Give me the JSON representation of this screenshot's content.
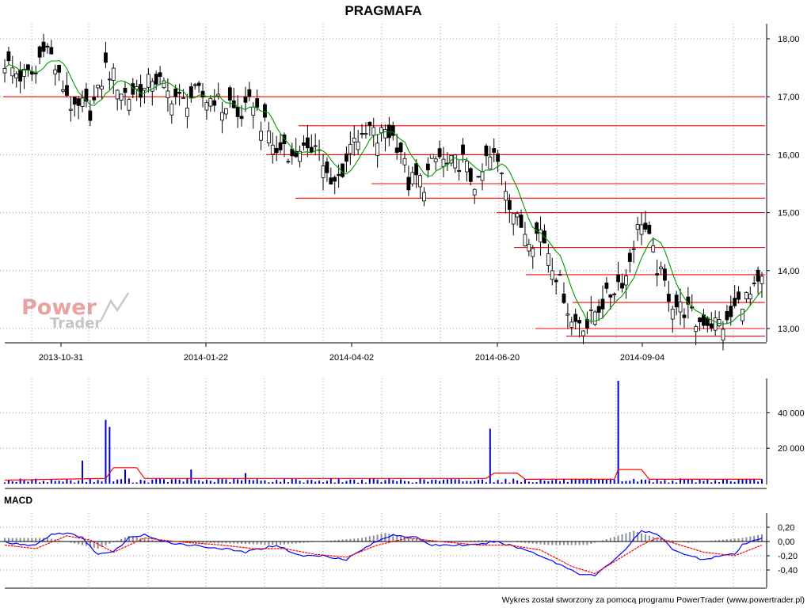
{
  "title": "PRAGMAFA",
  "footer": "Wykres został stworzony za pomocą programu PowerTrader (www.powertrader.pl)",
  "watermark": {
    "line1": "Power",
    "line2": "Trader"
  },
  "colors": {
    "candle_up": "#ffffff",
    "candle_down": "#000000",
    "ma": "#009900",
    "levels": "#ff0000",
    "volume": "#0000cc",
    "volume_avg": "#ff0000",
    "macd": "#0000ff",
    "signal": "#ff0000",
    "histogram": "#8a8fa0"
  },
  "chart_data": [
    {
      "panel": "price",
      "type": "candlestick",
      "title": "PRAGMAFA",
      "ylim": [
        12.85,
        18.1
      ],
      "yticks": [
        "13,00",
        "14,00",
        "15,00",
        "16,00",
        "17,00",
        "18,00"
      ],
      "ytick_values": [
        13,
        14,
        15,
        16,
        17,
        18
      ],
      "xticks": [
        "2013-10-31",
        "2014-01-22",
        "2014-04-02",
        "2014-06-20",
        "2014-09-04"
      ],
      "grid": true,
      "support_resistance_levels": [
        17.0,
        16.5,
        16.0,
        15.5,
        15.25,
        15.0,
        14.4,
        13.93,
        13.45,
        13.0,
        12.87
      ],
      "close_path": [
        [
          0,
          17.6
        ],
        [
          4,
          17.35
        ],
        [
          8,
          17.4
        ],
        [
          10,
          17.95
        ],
        [
          12,
          17.7
        ],
        [
          14,
          17.3
        ],
        [
          16,
          17.05
        ],
        [
          18,
          16.7
        ],
        [
          20,
          16.85
        ],
        [
          22,
          16.75
        ],
        [
          24,
          17.05
        ],
        [
          26,
          17.5
        ],
        [
          28,
          17.35
        ],
        [
          30,
          17.1
        ],
        [
          32,
          17.0
        ],
        [
          34,
          17.15
        ],
        [
          36,
          17.1
        ],
        [
          38,
          17.35
        ],
        [
          40,
          17.25
        ],
        [
          42,
          17.05
        ],
        [
          44,
          17.0
        ],
        [
          46,
          16.9
        ],
        [
          48,
          17.0
        ],
        [
          50,
          17.05
        ],
        [
          52,
          16.95
        ],
        [
          54,
          17.0
        ],
        [
          56,
          16.8
        ],
        [
          58,
          16.9
        ],
        [
          60,
          16.65
        ],
        [
          62,
          16.75
        ],
        [
          64,
          16.95
        ],
        [
          66,
          16.55
        ],
        [
          68,
          16.4
        ],
        [
          70,
          16.0
        ],
        [
          72,
          16.2
        ],
        [
          74,
          15.9
        ],
        [
          76,
          16.15
        ],
        [
          78,
          15.95
        ],
        [
          80,
          16.3
        ],
        [
          82,
          15.85
        ],
        [
          84,
          15.4
        ],
        [
          86,
          15.6
        ],
        [
          88,
          15.9
        ],
        [
          90,
          16.4
        ],
        [
          92,
          16.2
        ],
        [
          94,
          16.45
        ],
        [
          96,
          16.25
        ],
        [
          98,
          16.45
        ],
        [
          100,
          16.3
        ],
        [
          102,
          16.1
        ],
        [
          104,
          15.5
        ],
        [
          106,
          15.6
        ],
        [
          108,
          15.5
        ],
        [
          110,
          15.85
        ],
        [
          112,
          15.95
        ],
        [
          114,
          15.8
        ],
        [
          116,
          15.85
        ],
        [
          118,
          15.9
        ],
        [
          120,
          15.6
        ],
        [
          122,
          15.45
        ],
        [
          124,
          15.9
        ],
        [
          126,
          15.95
        ],
        [
          128,
          15.75
        ],
        [
          130,
          15.2
        ],
        [
          132,
          14.85
        ],
        [
          134,
          14.7
        ],
        [
          136,
          14.55
        ],
        [
          138,
          14.7
        ],
        [
          140,
          14.35
        ],
        [
          142,
          13.95
        ],
        [
          144,
          13.6
        ],
        [
          146,
          13.1
        ],
        [
          148,
          13.15
        ],
        [
          150,
          13.05
        ],
        [
          152,
          13.3
        ],
        [
          154,
          13.45
        ],
        [
          156,
          13.6
        ],
        [
          158,
          13.8
        ],
        [
          160,
          13.9
        ],
        [
          162,
          14.5
        ],
        [
          164,
          14.9
        ],
        [
          166,
          14.5
        ],
        [
          168,
          14.05
        ],
        [
          170,
          13.75
        ],
        [
          172,
          13.45
        ],
        [
          174,
          13.35
        ],
        [
          176,
          13.3
        ],
        [
          178,
          13.1
        ],
        [
          180,
          13.15
        ],
        [
          182,
          13.1
        ],
        [
          184,
          13.1
        ],
        [
          186,
          13.05
        ],
        [
          188,
          13.35
        ],
        [
          190,
          13.5
        ],
        [
          192,
          13.55
        ],
        [
          194,
          13.7
        ],
        [
          195,
          13.8
        ]
      ]
    },
    {
      "panel": "volume",
      "type": "bar",
      "ylim": [
        0,
        58000
      ],
      "yticks": [
        "20 000",
        "40 000"
      ],
      "ytick_values": [
        20000,
        40000
      ],
      "grid": true,
      "spikes": [
        [
          20,
          13000
        ],
        [
          26,
          36000
        ],
        [
          27,
          32000
        ],
        [
          31,
          8000
        ],
        [
          48,
          8000
        ],
        [
          62,
          6000
        ],
        [
          125,
          31000
        ],
        [
          158,
          58000
        ]
      ],
      "base_volume": 1500,
      "average_line": [
        [
          0,
          2000
        ],
        [
          26,
          3000
        ],
        [
          28,
          9000
        ],
        [
          34,
          9000
        ],
        [
          36,
          3000
        ],
        [
          124,
          3000
        ],
        [
          126,
          6000
        ],
        [
          132,
          6000
        ],
        [
          134,
          2500
        ],
        [
          157,
          2500
        ],
        [
          158,
          8000
        ],
        [
          164,
          8000
        ],
        [
          166,
          2500
        ],
        [
          195,
          2500
        ]
      ]
    },
    {
      "panel": "macd",
      "type": "line",
      "label": "MACD",
      "ylim": [
        -0.52,
        0.28
      ],
      "yticks": [
        "0,20",
        "0,00",
        "-0,20",
        "-0,40"
      ],
      "ytick_values": [
        0.2,
        0.0,
        -0.2,
        -0.4
      ],
      "grid": true,
      "series": [
        {
          "role": "macd",
          "values": [
            [
              0,
              0.0
            ],
            [
              4,
              -0.05
            ],
            [
              8,
              -0.05
            ],
            [
              12,
              0.1
            ],
            [
              16,
              0.12
            ],
            [
              20,
              0.05
            ],
            [
              24,
              -0.18
            ],
            [
              28,
              -0.15
            ],
            [
              32,
              0.05
            ],
            [
              36,
              0.1
            ],
            [
              40,
              0.0
            ],
            [
              48,
              -0.05
            ],
            [
              56,
              -0.1
            ],
            [
              62,
              -0.15
            ],
            [
              66,
              -0.1
            ],
            [
              70,
              -0.05
            ],
            [
              76,
              -0.2
            ],
            [
              82,
              -0.2
            ],
            [
              88,
              -0.25
            ],
            [
              94,
              -0.05
            ],
            [
              100,
              0.1
            ],
            [
              106,
              0.05
            ],
            [
              110,
              -0.05
            ],
            [
              116,
              -0.05
            ],
            [
              122,
              -0.05
            ],
            [
              126,
              0.0
            ],
            [
              130,
              -0.05
            ],
            [
              136,
              -0.15
            ],
            [
              142,
              -0.3
            ],
            [
              148,
              -0.45
            ],
            [
              152,
              -0.48
            ],
            [
              156,
              -0.3
            ],
            [
              160,
              -0.1
            ],
            [
              164,
              0.15
            ],
            [
              168,
              0.1
            ],
            [
              172,
              -0.1
            ],
            [
              176,
              -0.2
            ],
            [
              180,
              -0.25
            ],
            [
              184,
              -0.2
            ],
            [
              188,
              -0.18
            ],
            [
              190,
              -0.05
            ],
            [
              195,
              0.05
            ]
          ]
        },
        {
          "role": "signal",
          "values": [
            [
              0,
              -0.05
            ],
            [
              8,
              -0.1
            ],
            [
              16,
              0.08
            ],
            [
              22,
              0.02
            ],
            [
              28,
              -0.15
            ],
            [
              36,
              0.05
            ],
            [
              44,
              0.0
            ],
            [
              56,
              -0.05
            ],
            [
              64,
              -0.1
            ],
            [
              72,
              -0.1
            ],
            [
              80,
              -0.18
            ],
            [
              88,
              -0.22
            ],
            [
              96,
              -0.05
            ],
            [
              104,
              0.05
            ],
            [
              112,
              0.0
            ],
            [
              122,
              -0.05
            ],
            [
              130,
              -0.05
            ],
            [
              138,
              -0.12
            ],
            [
              146,
              -0.35
            ],
            [
              152,
              -0.45
            ],
            [
              158,
              -0.25
            ],
            [
              164,
              -0.05
            ],
            [
              168,
              0.05
            ],
            [
              174,
              -0.05
            ],
            [
              180,
              -0.15
            ],
            [
              188,
              -0.2
            ],
            [
              195,
              -0.05
            ]
          ]
        }
      ],
      "histogram": [
        [
          0,
          0.05
        ],
        [
          10,
          0.05
        ],
        [
          12,
          0.04
        ],
        [
          20,
          -0.05
        ],
        [
          24,
          -0.1
        ],
        [
          32,
          0.08
        ],
        [
          40,
          0.0
        ],
        [
          60,
          -0.03
        ],
        [
          70,
          -0.05
        ],
        [
          92,
          0.05
        ],
        [
          98,
          0.12
        ],
        [
          104,
          0.05
        ],
        [
          112,
          0.0
        ],
        [
          124,
          0.02
        ],
        [
          130,
          0.0
        ],
        [
          140,
          -0.05
        ],
        [
          150,
          -0.05
        ],
        [
          156,
          0.05
        ],
        [
          162,
          0.15
        ],
        [
          168,
          0.05
        ],
        [
          176,
          -0.02
        ],
        [
          190,
          0.05
        ],
        [
          195,
          0.1
        ]
      ]
    }
  ]
}
